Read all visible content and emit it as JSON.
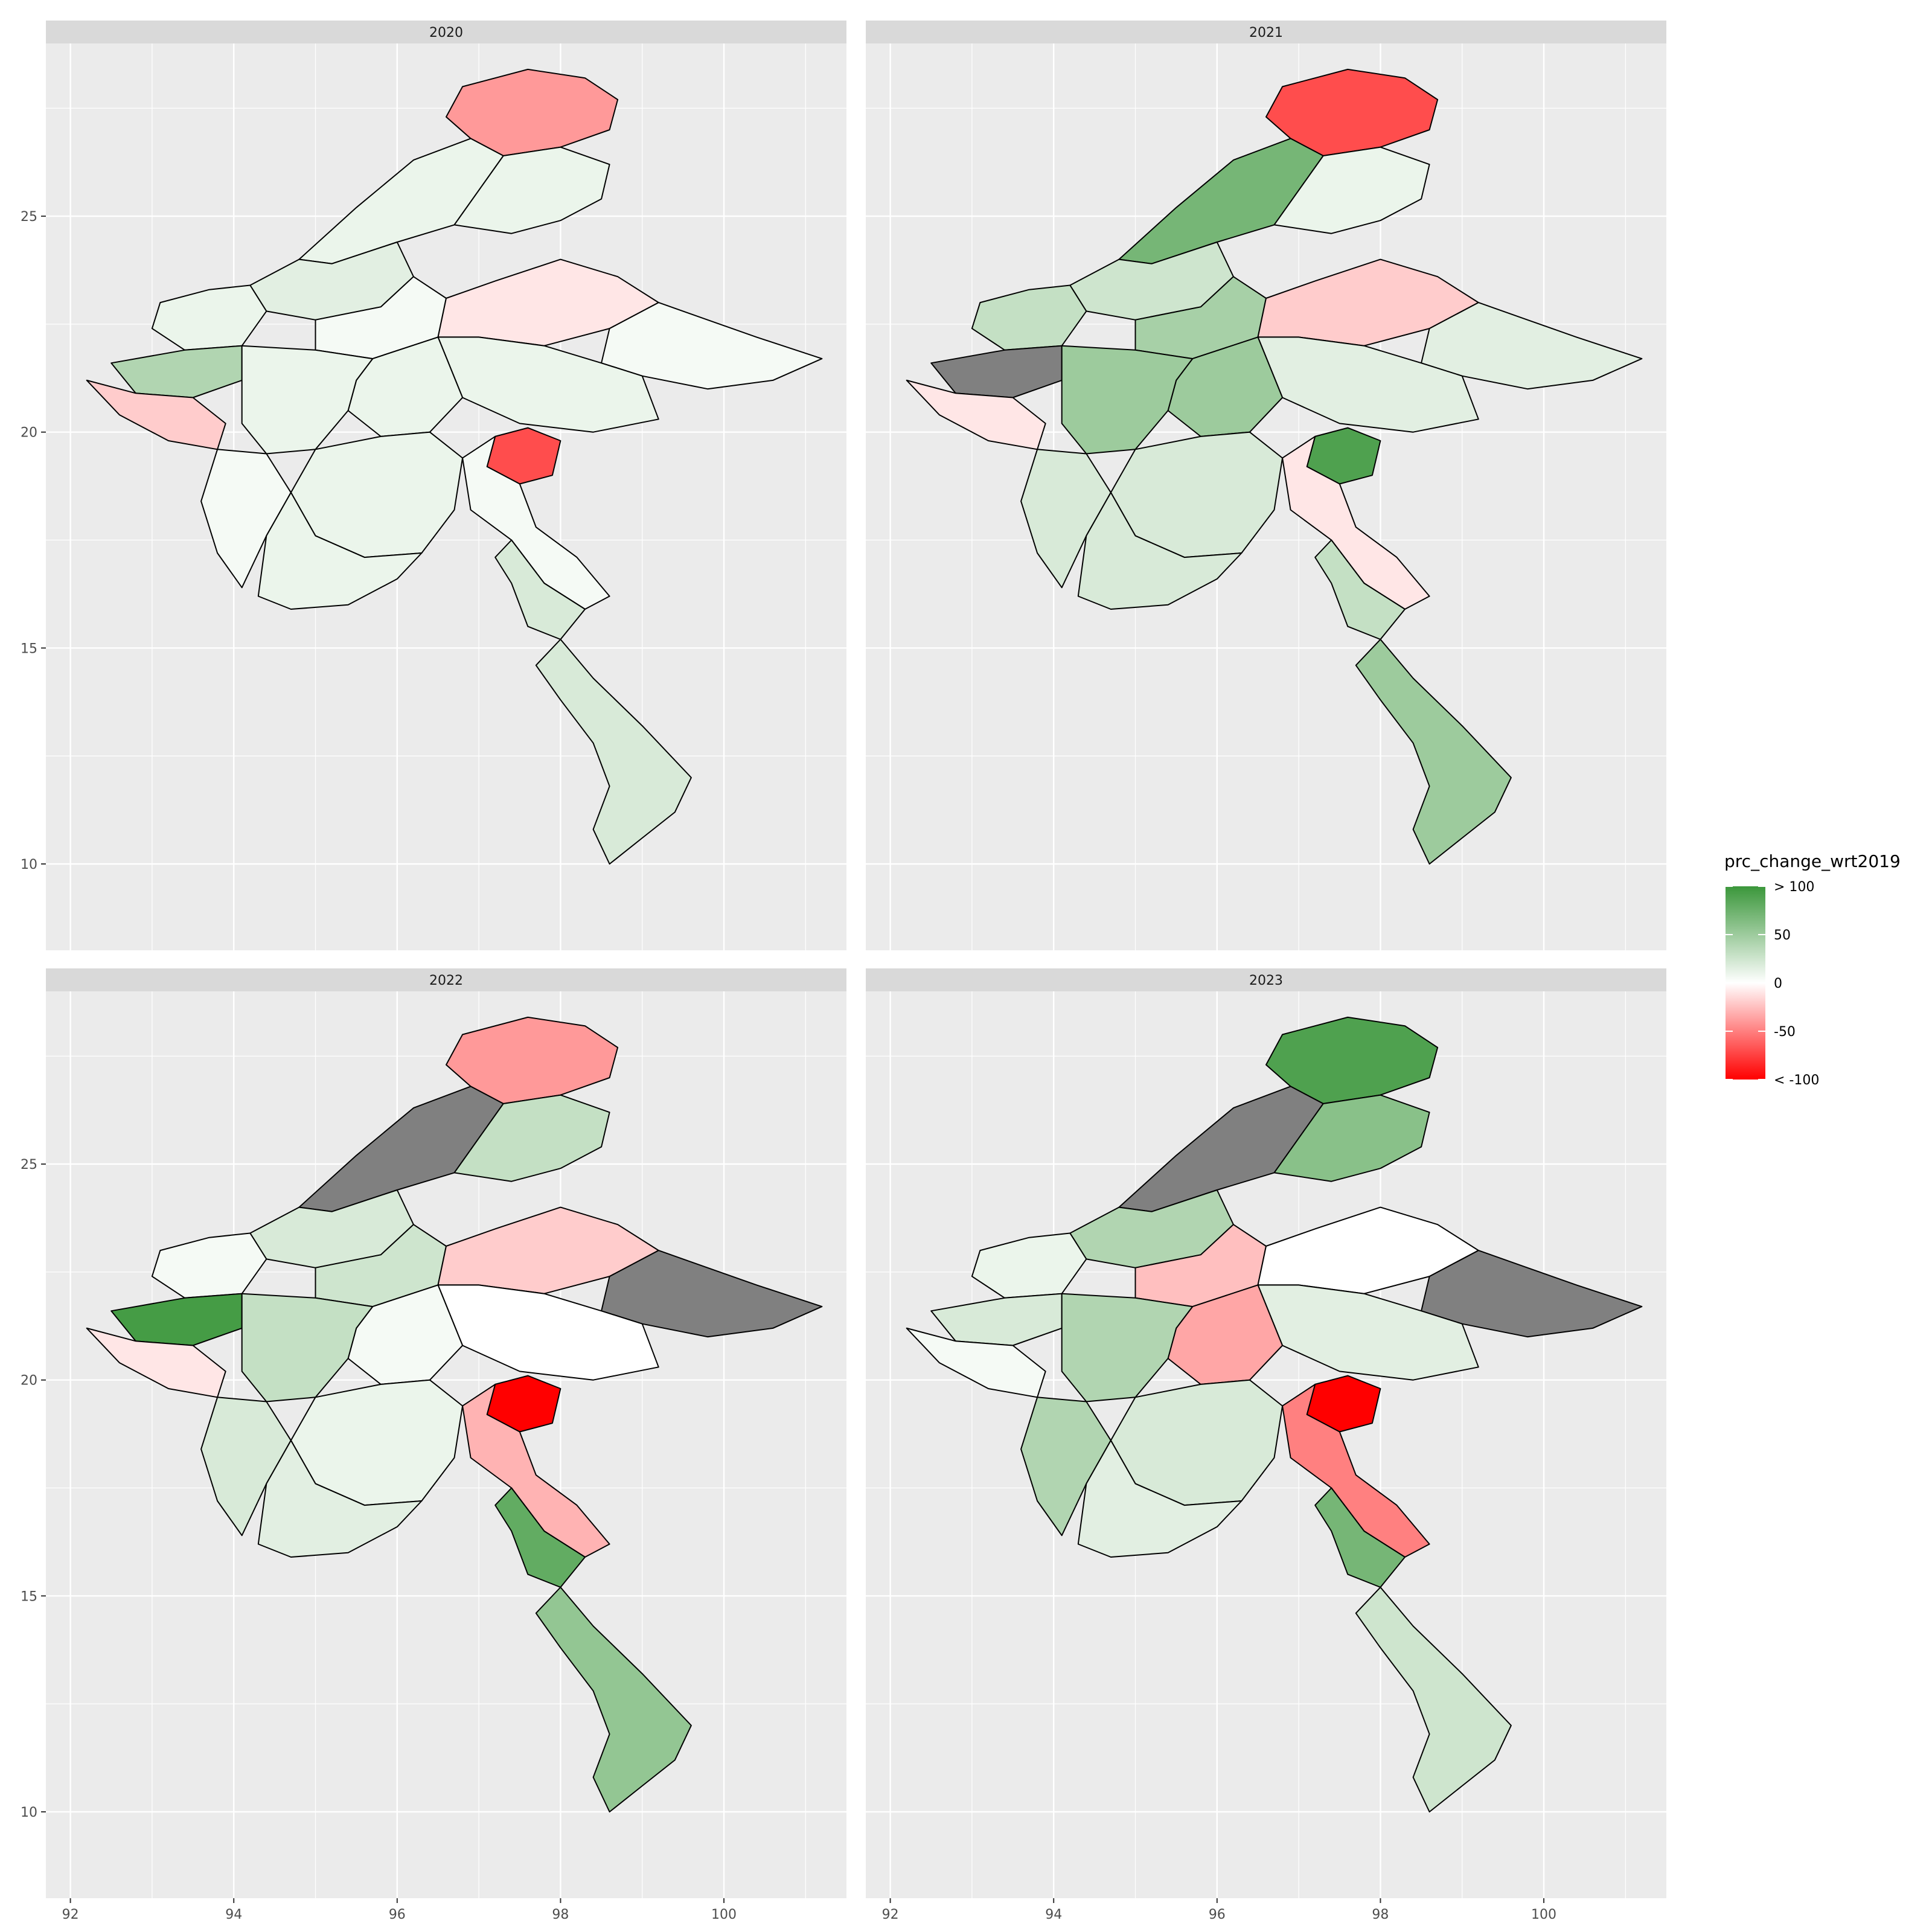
{
  "chart_data": {
    "type": "choropleth",
    "facet_titles": [
      "2020",
      "2021",
      "2022",
      "2023"
    ],
    "x_ticks": [
      "92",
      "94",
      "96",
      "98",
      "100"
    ],
    "y_ticks": [
      "10",
      "15",
      "20",
      "25"
    ],
    "xlim": [
      91.7,
      101.5
    ],
    "ylim": [
      8.0,
      29.0
    ],
    "legend": {
      "title": "prc_change_wrt2019",
      "labels": [
        "> 100",
        "50",
        "0",
        "-50",
        "< -100"
      ],
      "values": [
        100,
        50,
        0,
        -50,
        -100
      ],
      "colors": {
        "high": "#3b973b",
        "mid": "#ffffff",
        "low": "#ff0000",
        "na": "#808080"
      }
    },
    "panel_background": "#ebebeb",
    "grid": true,
    "regions_2020": {
      "Kachin north": -40,
      "Kachin west": 10,
      "Kachin central": 10,
      "Sagaing north": 15,
      "Sagaing central": 5,
      "Chin north": 10,
      "Chin central": 40,
      "Rakhine north": -20,
      "Rakhine south": 5,
      "Shan north": -10,
      "Shan east": 5,
      "Shan south": 10,
      "Mandalay": 10,
      "Magway": 10,
      "Bago": 10,
      "Kayah": -70,
      "Kayin": 5,
      "Mon": 20,
      "Tanintharyi": 20,
      "Ayeyarwady": 10
    },
    "regions_2021": {
      "Kachin north": -70,
      "Kachin west": 70,
      "Kachin central": 10,
      "Sagaing north": 25,
      "Sagaing central": 45,
      "Chin north": 30,
      "Chin central": null,
      "Rakhine north": -10,
      "Rakhine south": 20,
      "Shan north": -20,
      "Shan east": 15,
      "Shan south": 15,
      "Mandalay": 50,
      "Magway": 50,
      "Bago": 20,
      "Kayah": 90,
      "Kayin": -10,
      "Mon": 30,
      "Tanintharyi": 50,
      "Ayeyarwady": 20
    },
    "regions_2022": {
      "Kachin north": -40,
      "Kachin west": null,
      "Kachin central": 30,
      "Sagaing north": 20,
      "Sagaing central": 25,
      "Chin north": 5,
      "Chin central": 95,
      "Rakhine north": -10,
      "Rakhine south": 20,
      "Shan north": -20,
      "Shan east": null,
      "Shan south": 0,
      "Mandalay": 5,
      "Magway": 30,
      "Bago": 10,
      "Kayah": -100,
      "Kayin": -30,
      "Mon": 80,
      "Tanintharyi": 55,
      "Ayeyarwady": 15
    },
    "regions_2023": {
      "Kachin north": 90,
      "Kachin west": null,
      "Kachin central": 60,
      "Sagaing north": 40,
      "Sagaing central": -25,
      "Chin north": 10,
      "Chin central": 20,
      "Rakhine north": 5,
      "Rakhine south": 40,
      "Shan north": 0,
      "Shan east": null,
      "Shan south": 15,
      "Mandalay": -35,
      "Magway": 40,
      "Bago": 20,
      "Kayah": -100,
      "Kayin": -50,
      "Mon": 70,
      "Tanintharyi": 25,
      "Ayeyarwady": 15
    }
  }
}
